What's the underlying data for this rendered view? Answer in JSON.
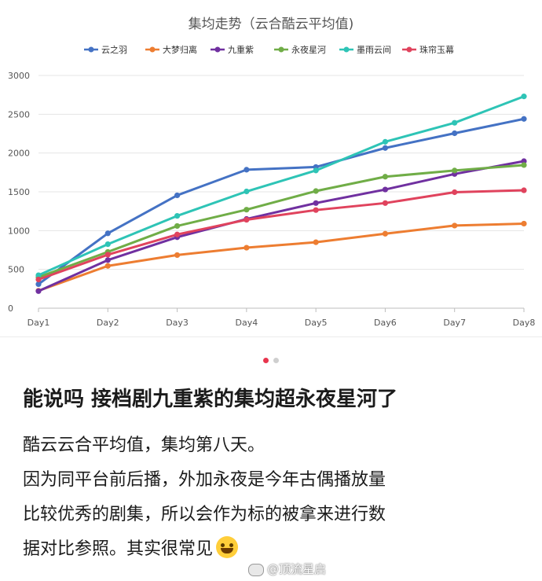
{
  "chart_data": {
    "type": "line",
    "title": "集均走势（云合酷云平均值)",
    "categories": [
      "Day1",
      "Day2",
      "Day3",
      "Day4",
      "Day5",
      "Day6",
      "Day7",
      "Day8"
    ],
    "y_ticks": [
      "0",
      "500",
      "1000",
      "1500",
      "2000",
      "2500",
      "3000"
    ],
    "ylim": [
      0,
      3000
    ],
    "grid": "horizontal",
    "legend_position": "top",
    "series": [
      {
        "name": "云之羽",
        "color": "#4472c4",
        "values": [
          310,
          965,
          1455,
          1785,
          1820,
          2065,
          2255,
          2440
        ]
      },
      {
        "name": "大梦归离",
        "color": "#ed7d31",
        "values": [
          225,
          545,
          685,
          780,
          850,
          960,
          1065,
          1090
        ]
      },
      {
        "name": "九重紫",
        "color": "#7030a0",
        "values": [
          220,
          620,
          915,
          1150,
          1355,
          1530,
          1730,
          1895
        ]
      },
      {
        "name": "永夜星河",
        "color": "#70ad47",
        "values": [
          400,
          725,
          1060,
          1270,
          1510,
          1695,
          1775,
          1845
        ]
      },
      {
        "name": "墨雨云间",
        "color": "#2ec4b6",
        "values": [
          425,
          825,
          1190,
          1505,
          1775,
          2145,
          2390,
          2730
        ]
      },
      {
        "name": "珠帘玉幕",
        "color": "#e0435d",
        "values": [
          370,
          690,
          950,
          1140,
          1265,
          1355,
          1495,
          1520
        ]
      }
    ]
  },
  "carousel": {
    "active_color": "#e8344d",
    "inactive_color": "#cfcfcf"
  },
  "post": {
    "headline": "能说吗 接档剧九重紫的集均超永夜星河了",
    "line1": "酷云云合平均值，集均第八天。",
    "line2": "因为同平台前后播，外加永夜是今年古偶播放量",
    "line3": "比较优秀的剧集，所以会作为标的被拿来进行数",
    "line4": "据对比参照。其实很常见",
    "emoji": "grinning-sweat-emoji"
  },
  "watermark": {
    "text": "@顶流星启"
  }
}
